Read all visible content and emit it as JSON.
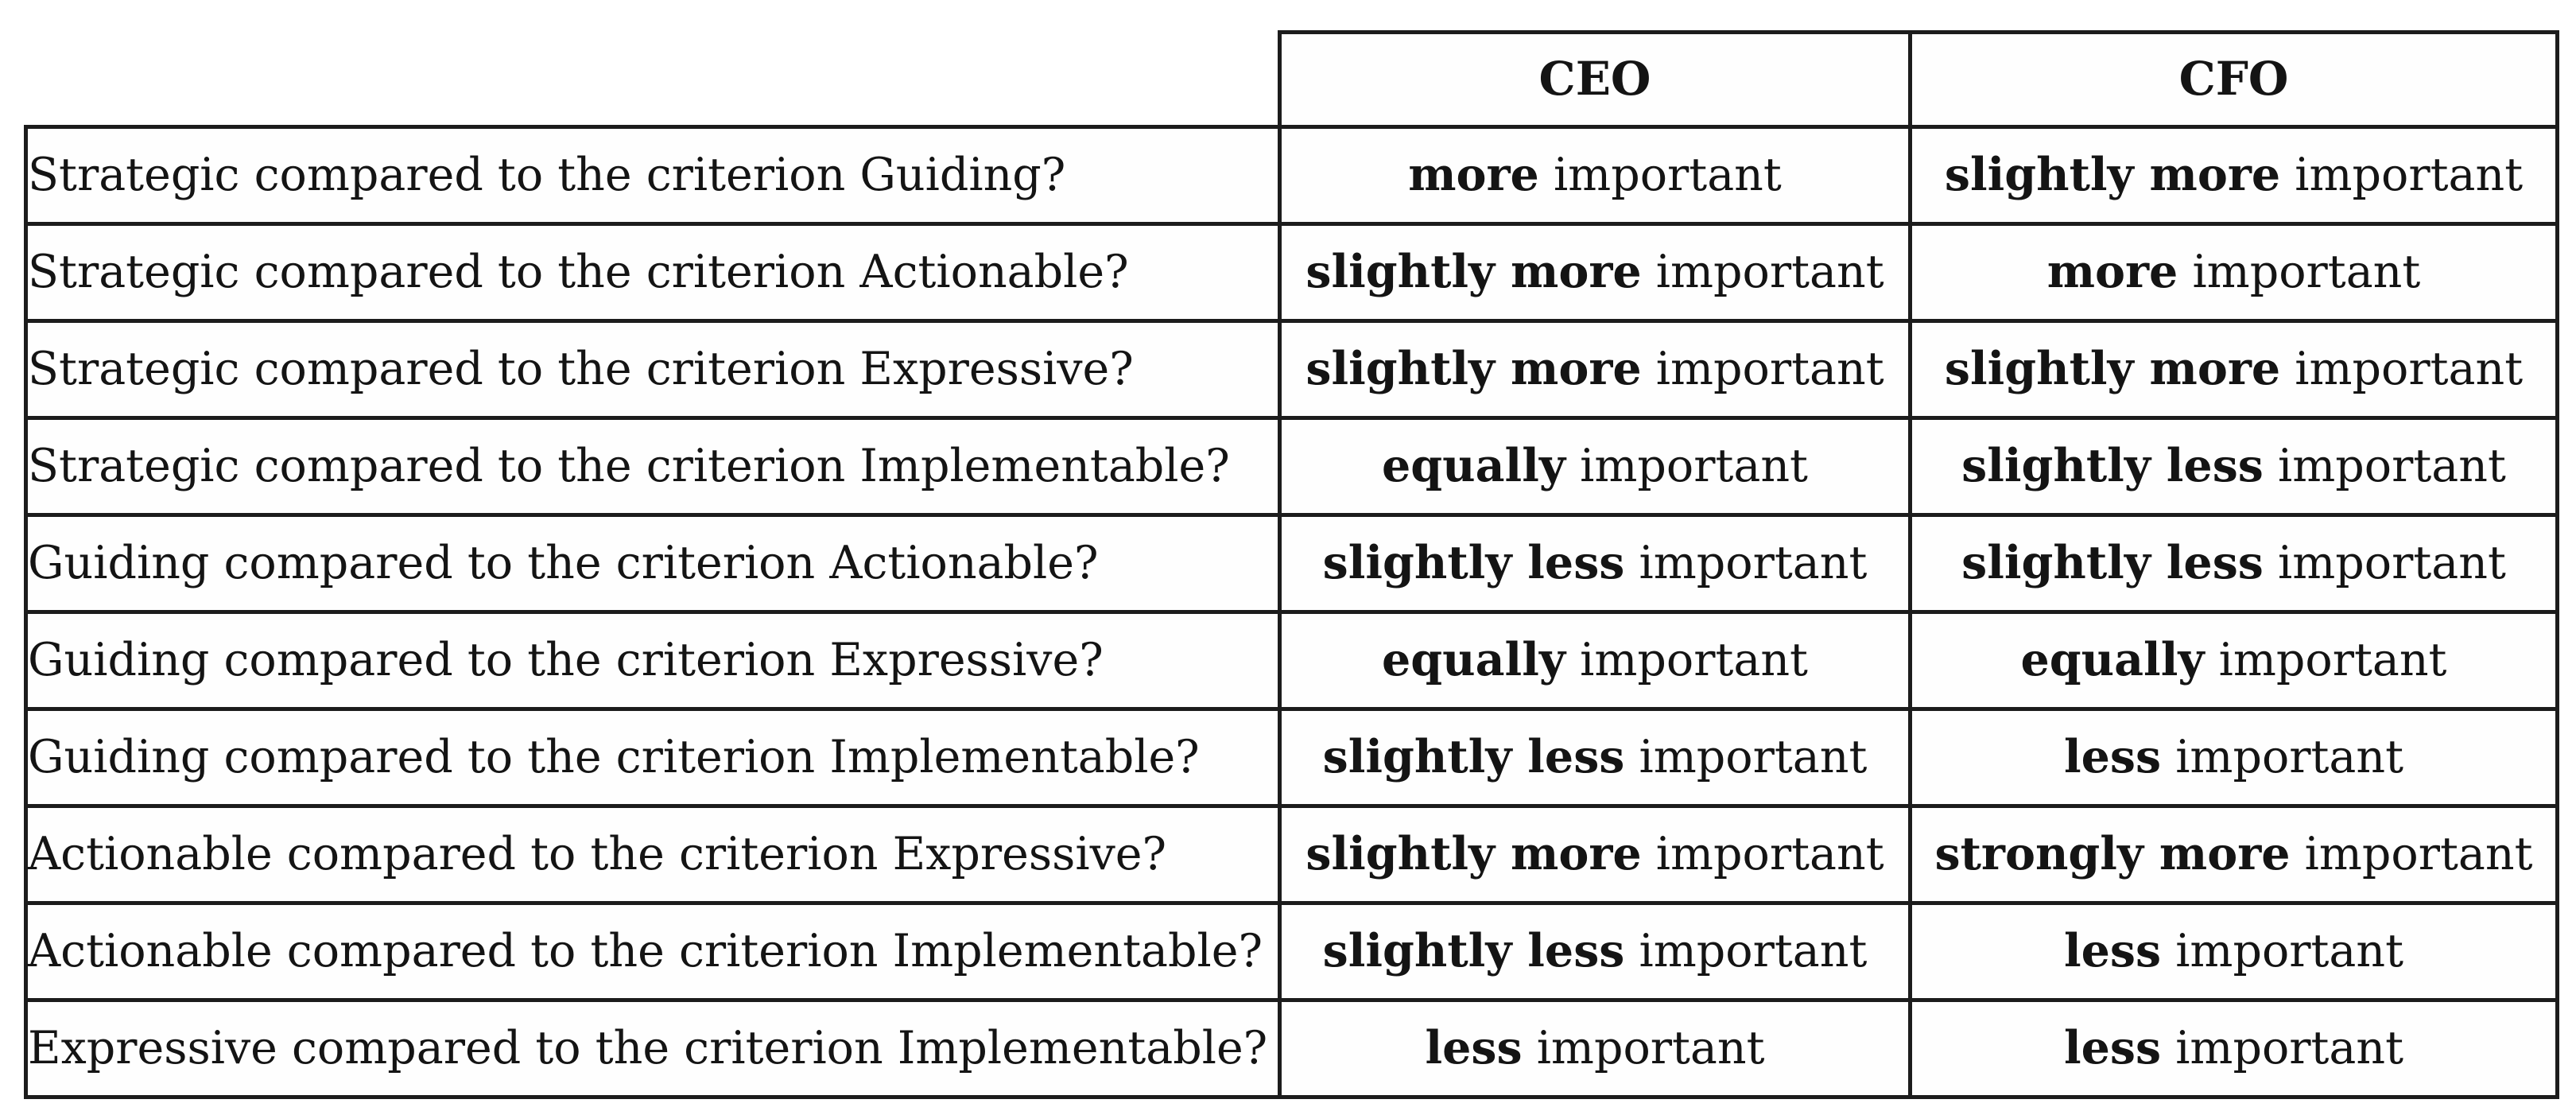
{
  "table": {
    "title_hint": "pairwise criteria comparison answers",
    "header": {
      "question_col": "",
      "ceo": "CEO",
      "cfo": "CFO"
    },
    "rows": [
      {
        "question": "Strategic compared to the criterion Guiding?",
        "ceo": {
          "bold": "more",
          "normal": "important"
        },
        "cfo": {
          "bold": "slightly more",
          "normal": "important"
        }
      },
      {
        "question": "Strategic compared to the criterion Actionable?",
        "ceo": {
          "bold": "slightly more",
          "normal": "important"
        },
        "cfo": {
          "bold": "more",
          "normal": "important"
        }
      },
      {
        "question": "Strategic compared to the criterion Expressive?",
        "ceo": {
          "bold": "slightly more",
          "normal": "important"
        },
        "cfo": {
          "bold": "slightly more",
          "normal": "important"
        }
      },
      {
        "question": "Strategic compared to the criterion Implementable?",
        "ceo": {
          "bold": "equally",
          "normal": "important"
        },
        "cfo": {
          "bold": "slightly less",
          "normal": "important"
        }
      },
      {
        "question": "Guiding compared to the criterion Actionable?",
        "ceo": {
          "bold": "slightly less",
          "normal": "important"
        },
        "cfo": {
          "bold": "slightly less",
          "normal": "important"
        }
      },
      {
        "question": "Guiding compared to the criterion Expressive?",
        "ceo": {
          "bold": "equally",
          "normal": "important"
        },
        "cfo": {
          "bold": "equally",
          "normal": "important"
        }
      },
      {
        "question": "Guiding compared to the criterion Implementable?",
        "ceo": {
          "bold": "slightly less",
          "normal": "important"
        },
        "cfo": {
          "bold": "less",
          "normal": "important"
        }
      },
      {
        "question": "Actionable compared to the criterion Expressive?",
        "ceo": {
          "bold": "slightly more",
          "normal": "important"
        },
        "cfo": {
          "bold": "strongly more",
          "normal": "important"
        }
      },
      {
        "question": "Actionable compared to the criterion Implementable?",
        "ceo": {
          "bold": "slightly less",
          "normal": "important"
        },
        "cfo": {
          "bold": "less",
          "normal": "important"
        }
      },
      {
        "question": "Expressive compared to the criterion Implementable?",
        "ceo": {
          "bold": "less",
          "normal": "important"
        },
        "cfo": {
          "bold": "less",
          "normal": "important"
        }
      }
    ]
  },
  "colors": {
    "border": "#1c1c1c",
    "text": "#141414",
    "background": "#ffffff"
  }
}
